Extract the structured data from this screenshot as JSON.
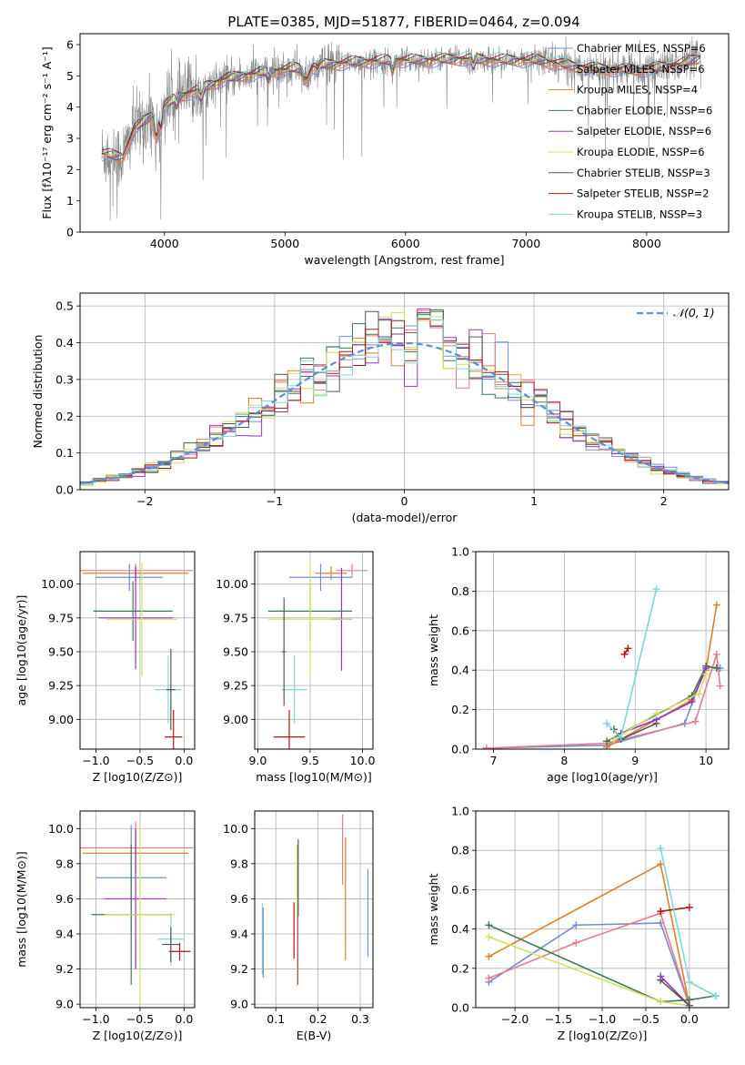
{
  "figure_title": "PLATE=0385, MJD=51877, FIBERID=0464, z=0.094",
  "colors": {
    "chabrier_miles": "#6f8fd6",
    "salpeter_miles": "#e87b8a",
    "kroupa_miles": "#e07f2b",
    "chabrier_elodie": "#3d7a4f",
    "salpeter_elodie": "#9a34c0",
    "kroupa_elodie": "#d4e060",
    "chabrier_stelib": "#555555",
    "salpeter_stelib": "#b01515",
    "kroupa_stelib": "#7ed6d8",
    "data": "#888888",
    "normal": "#5b8fd6"
  },
  "chart_data": [
    {
      "id": "spectrum",
      "type": "line",
      "title": "PLATE=0385, MJD=51877, FIBERID=0464, z=0.094",
      "xlabel": "wavelength [Angstrom, rest frame]",
      "ylabel": "Flux [fλ10⁻¹⁷ erg cm⁻² s⁻¹ A⁻¹]",
      "xlim": [
        3300,
        8680
      ],
      "ylim": [
        0,
        6.35
      ],
      "xticks": [
        "4000",
        "5000",
        "6000",
        "7000",
        "8000"
      ],
      "yticks": [
        "0",
        "1",
        "2",
        "3",
        "4",
        "5",
        "6"
      ],
      "grid": false,
      "legend": "right",
      "continuum": [
        [
          3500,
          2.5
        ],
        [
          3650,
          2.4
        ],
        [
          3750,
          3.3
        ],
        [
          3850,
          3.6
        ],
        [
          3950,
          3.9
        ],
        [
          4100,
          4.3
        ],
        [
          4300,
          4.6
        ],
        [
          4500,
          4.9
        ],
        [
          4800,
          5.1
        ],
        [
          5000,
          5.2
        ],
        [
          5300,
          5.35
        ],
        [
          5600,
          5.45
        ],
        [
          5900,
          5.5
        ],
        [
          6200,
          5.5
        ],
        [
          6500,
          5.55
        ],
        [
          6800,
          5.5
        ],
        [
          7100,
          5.5
        ],
        [
          7400,
          5.3
        ],
        [
          7700,
          5.2
        ],
        [
          8000,
          5.2
        ],
        [
          8300,
          5.4
        ],
        [
          8450,
          5.6
        ]
      ],
      "series": [
        {
          "name": "Chabrier MILES, N_SSP=6"
        },
        {
          "name": "Salpeter MILES, N_SSP=6"
        },
        {
          "name": "Kroupa MILES, N_SSP=4"
        },
        {
          "name": "Chabrier ELODIE, N_SSP=6"
        },
        {
          "name": "Salpeter ELODIE, N_SSP=6"
        },
        {
          "name": "Kroupa ELODIE, N_SSP=6"
        },
        {
          "name": "Chabrier STELIB, N_SSP=3"
        },
        {
          "name": "Salpeter STELIB, N_SSP=2"
        },
        {
          "name": "Kroupa STELIB, N_SSP=3"
        }
      ]
    },
    {
      "id": "residuals",
      "type": "line",
      "xlabel": "(data-model)/error",
      "ylabel": "Normed distribution",
      "xlim": [
        -2.5,
        2.5
      ],
      "ylim": [
        0,
        0.535
      ],
      "xticks": [
        "−2",
        "−1",
        "0",
        "1",
        "2"
      ],
      "yticks": [
        "0.0",
        "0.1",
        "0.2",
        "0.3",
        "0.4",
        "0.5"
      ],
      "grid": true,
      "legend": "top-right",
      "reference": {
        "name": "𝒩(0, 1)",
        "mean": 0,
        "sigma": 1
      }
    },
    {
      "id": "age_vs_Z",
      "type": "scatter",
      "xlabel": "Z [log10(Z/Z⊙)]",
      "ylabel": "age  [log10(age/yr)]",
      "xlim": [
        -1.18,
        0.12
      ],
      "ylim": [
        8.78,
        10.24
      ],
      "xticks": [
        "−1.0",
        "−0.5",
        "0.0"
      ],
      "yticks": [
        "9.00",
        "9.25",
        "9.50",
        "9.75",
        "10.00"
      ],
      "grid": true,
      "points": [
        {
          "x": -0.55,
          "y": 10.1,
          "xerr": 0.65,
          "yerr": 0.05,
          "color": "#e87b8a"
        },
        {
          "x": -0.55,
          "y": 10.08,
          "xerr": 0.6,
          "yerr": 0.05,
          "color": "#e07f2b"
        },
        {
          "x": -0.62,
          "y": 10.05,
          "xerr": 0.38,
          "yerr": 0.1,
          "color": "#6f8fd6"
        },
        {
          "x": -0.58,
          "y": 9.8,
          "xerr": 0.45,
          "yerr": 0.22,
          "color": "#3d7a4f"
        },
        {
          "x": -0.55,
          "y": 9.75,
          "xerr": 0.42,
          "yerr": 0.38,
          "color": "#9a34c0"
        },
        {
          "x": -0.48,
          "y": 9.74,
          "xerr": 0.4,
          "yerr": 0.42,
          "color": "#d4e060"
        },
        {
          "x": -0.18,
          "y": 9.22,
          "xerr": 0.15,
          "yerr": 0.25,
          "color": "#7ed6d8"
        },
        {
          "x": -0.12,
          "y": 8.87,
          "xerr": 0.1,
          "yerr": 0.2,
          "color": "#b01515"
        },
        {
          "x": -0.15,
          "y": 9.22,
          "xerr": 0.05,
          "yerr": 0.3,
          "color": "#555555"
        }
      ]
    },
    {
      "id": "age_vs_mass",
      "type": "scatter",
      "xlabel": "mass [log10(M/M⊙)]",
      "ylabel": "",
      "xlim": [
        8.97,
        10.1
      ],
      "ylim": [
        8.78,
        10.24
      ],
      "xticks": [
        "9.0",
        "9.5",
        "10.0"
      ],
      "yticks": [
        "9.00",
        "9.25",
        "9.50",
        "9.75",
        "10.00"
      ],
      "grid": true,
      "points": [
        {
          "x": 9.9,
          "y": 10.1,
          "xerr": 0.15,
          "yerr": 0.05,
          "color": "#e87b8a"
        },
        {
          "x": 9.7,
          "y": 10.08,
          "xerr": 0.15,
          "yerr": 0.05,
          "color": "#e07f2b"
        },
        {
          "x": 9.6,
          "y": 10.05,
          "xerr": 0.3,
          "yerr": 0.1,
          "color": "#6f8fd6"
        },
        {
          "x": 9.5,
          "y": 9.8,
          "xerr": 0.4,
          "yerr": 0.22,
          "color": "#3d7a4f"
        },
        {
          "x": 9.8,
          "y": 9.74,
          "xerr": 0.1,
          "yerr": 0.38,
          "color": "#9a34c0"
        },
        {
          "x": 9.5,
          "y": 9.74,
          "xerr": 0.4,
          "yerr": 0.42,
          "color": "#d4e060"
        },
        {
          "x": 9.35,
          "y": 9.22,
          "xerr": 0.12,
          "yerr": 0.25,
          "color": "#7ed6d8"
        },
        {
          "x": 9.3,
          "y": 8.87,
          "xerr": 0.15,
          "yerr": 0.2,
          "color": "#b01515"
        },
        {
          "x": 9.25,
          "y": 9.5,
          "xerr": 0.02,
          "yerr": 0.4,
          "color": "#555555"
        }
      ]
    },
    {
      "id": "mass_weight_vs_age",
      "type": "line",
      "xlabel": "age  [log10(age/yr)]",
      "ylabel": "mass weight",
      "xlim": [
        6.75,
        10.32
      ],
      "ylim": [
        0,
        1.0
      ],
      "xticks": [
        "7",
        "8",
        "9",
        "10"
      ],
      "yticks": [
        "0.0",
        "0.2",
        "0.4",
        "0.6",
        "0.8",
        "1.0"
      ],
      "grid": true,
      "series": [
        {
          "color": "#6f8fd6",
          "points": [
            [
              6.9,
              0.005
            ],
            [
              8.6,
              0.02
            ],
            [
              9.7,
              0.13
            ],
            [
              10.0,
              0.42
            ],
            [
              10.2,
              0.41
            ]
          ]
        },
        {
          "color": "#e87b8a",
          "points": [
            [
              6.9,
              0.005
            ],
            [
              8.6,
              0.03
            ],
            [
              9.85,
              0.14
            ],
            [
              10.15,
              0.48
            ],
            [
              10.2,
              0.32
            ]
          ]
        },
        {
          "color": "#e07f2b",
          "points": [
            [
              8.6,
              0.01
            ],
            [
              9.8,
              0.25
            ],
            [
              10.0,
              0.4
            ],
            [
              10.15,
              0.73
            ]
          ]
        },
        {
          "color": "#3d7a4f",
          "points": [
            [
              8.6,
              0.04
            ],
            [
              9.8,
              0.27
            ],
            [
              10.0,
              0.42
            ],
            [
              10.15,
              0.41
            ]
          ]
        },
        {
          "color": "#9a34c0",
          "points": [
            [
              8.8,
              0.08
            ],
            [
              9.3,
              0.15
            ],
            [
              9.8,
              0.24
            ],
            [
              10.0,
              0.41
            ]
          ]
        },
        {
          "color": "#d4e060",
          "points": [
            [
              8.7,
              0.05
            ],
            [
              9.3,
              0.18
            ],
            [
              9.9,
              0.28
            ],
            [
              10.0,
              0.38
            ]
          ]
        },
        {
          "color": "#555555",
          "points": [
            [
              8.7,
              0.1
            ],
            [
              8.8,
              0.05
            ],
            [
              9.3,
              0.13
            ]
          ]
        },
        {
          "color": "#b01515",
          "points": [
            [
              8.85,
              0.48
            ],
            [
              8.9,
              0.51
            ]
          ]
        },
        {
          "color": "#7ed6d8",
          "points": [
            [
              8.6,
              0.13
            ],
            [
              8.8,
              0.06
            ],
            [
              9.3,
              0.81
            ]
          ]
        }
      ]
    },
    {
      "id": "mass_vs_Z",
      "type": "scatter",
      "xlabel": "Z [log10(Z/Z⊙)]",
      "ylabel": "mass [log10(M/M⊙)]",
      "xlim": [
        -1.18,
        0.12
      ],
      "ylim": [
        8.98,
        10.1
      ],
      "xticks": [
        "−1.0",
        "−0.5",
        "0.0"
      ],
      "yticks": [
        "9.0",
        "9.2",
        "9.4",
        "9.6",
        "9.8",
        "10.0"
      ],
      "grid": true,
      "points": [
        {
          "x": -0.55,
          "y": 9.89,
          "xerr": 0.65,
          "yerr": 0.15,
          "color": "#e87b8a"
        },
        {
          "x": -0.55,
          "y": 9.86,
          "xerr": 0.6,
          "yerr": 0.1,
          "color": "#e07f2b"
        },
        {
          "x": -0.6,
          "y": 9.72,
          "xerr": 0.4,
          "yerr": 0.3,
          "color": "#6f8fd6"
        },
        {
          "x": -0.6,
          "y": 9.51,
          "xerr": 0.45,
          "yerr": 0.4,
          "color": "#3d7a4f"
        },
        {
          "x": -0.55,
          "y": 9.6,
          "xerr": 0.35,
          "yerr": 0.4,
          "color": "#9a34c0"
        },
        {
          "x": -0.5,
          "y": 9.51,
          "xerr": 0.4,
          "yerr": 0.5,
          "color": "#d4e060"
        },
        {
          "x": -0.15,
          "y": 9.37,
          "xerr": 0.15,
          "yerr": 0.15,
          "color": "#7ed6d8"
        },
        {
          "x": -0.05,
          "y": 9.3,
          "xerr": 0.12,
          "yerr": 0.05,
          "color": "#b01515"
        },
        {
          "x": -0.15,
          "y": 9.34,
          "xerr": 0.1,
          "yerr": 0.1,
          "color": "#555555"
        }
      ]
    },
    {
      "id": "mass_vs_ebv",
      "type": "scatter",
      "xlabel": "E(B-V)",
      "ylabel": "",
      "xlim": [
        0.05,
        0.33
      ],
      "ylim": [
        8.98,
        10.1
      ],
      "xticks": [
        "0.1",
        "0.2",
        "0.3"
      ],
      "yticks": [
        "9.0",
        "9.2",
        "9.4",
        "9.6",
        "9.8",
        "10.0"
      ],
      "grid": true,
      "points": [
        {
          "x": 0.068,
          "y": 9.37,
          "yerr": 0.2,
          "color": "#7ed6d8"
        },
        {
          "x": 0.07,
          "y": 9.35,
          "yerr": 0.2,
          "color": "#6f8fd6"
        },
        {
          "x": 0.143,
          "y": 9.42,
          "yerr": 0.16,
          "color": "#b01515"
        },
        {
          "x": 0.152,
          "y": 9.51,
          "yerr": 0.4,
          "color": "#9a34c0"
        },
        {
          "x": 0.153,
          "y": 9.72,
          "yerr": 0.22,
          "color": "#3d7a4f"
        },
        {
          "x": 0.15,
          "y": 9.5,
          "yerr": 0.4,
          "color": "#d4e060"
        },
        {
          "x": 0.258,
          "y": 9.88,
          "yerr": 0.2,
          "color": "#e87b8a"
        },
        {
          "x": 0.265,
          "y": 9.6,
          "yerr": 0.35,
          "color": "#e07f2b"
        },
        {
          "x": 0.318,
          "y": 9.52,
          "yerr": 0.25,
          "color": "#6f8fd6"
        }
      ]
    },
    {
      "id": "mass_weight_vs_Z",
      "type": "line",
      "xlabel": "Z [log10(Z/Z⊙)]",
      "ylabel": "mass weight",
      "xlim": [
        -2.45,
        0.45
      ],
      "ylim": [
        0,
        1.0
      ],
      "xticks": [
        "−2.0",
        "−1.5",
        "−1.0",
        "−0.5",
        "0.0"
      ],
      "yticks": [
        "0.0",
        "0.2",
        "0.4",
        "0.6",
        "0.8",
        "1.0"
      ],
      "grid": true,
      "series": [
        {
          "color": "#6f8fd6",
          "points": [
            [
              -2.3,
              0.13
            ],
            [
              -1.3,
              0.42
            ],
            [
              -0.33,
              0.43
            ],
            [
              0.0,
              0.01
            ]
          ]
        },
        {
          "color": "#e87b8a",
          "points": [
            [
              -2.3,
              0.15
            ],
            [
              -1.3,
              0.33
            ],
            [
              -0.33,
              0.48
            ],
            [
              0.0,
              0.01
            ]
          ]
        },
        {
          "color": "#e07f2b",
          "points": [
            [
              -2.3,
              0.26
            ],
            [
              -0.33,
              0.73
            ],
            [
              0.0,
              0.01
            ]
          ]
        },
        {
          "color": "#3d7a4f",
          "points": [
            [
              -2.3,
              0.42
            ],
            [
              -0.33,
              0.03
            ],
            [
              0.0,
              0.04
            ],
            [
              0.3,
              0.06
            ]
          ]
        },
        {
          "color": "#9a34c0",
          "points": [
            [
              -0.33,
              0.16
            ],
            [
              0.0,
              0.01
            ]
          ]
        },
        {
          "color": "#d4e060",
          "points": [
            [
              -2.3,
              0.36
            ],
            [
              -0.33,
              0.03
            ],
            [
              0.0,
              0.01
            ]
          ]
        },
        {
          "color": "#555555",
          "points": [
            [
              -0.33,
              0.14
            ],
            [
              0.0,
              0.01
            ]
          ]
        },
        {
          "color": "#b01515",
          "points": [
            [
              -0.33,
              0.49
            ],
            [
              0.0,
              0.51
            ]
          ]
        },
        {
          "color": "#7ed6d8",
          "points": [
            [
              -0.33,
              0.81
            ],
            [
              0.0,
              0.13
            ],
            [
              0.3,
              0.06
            ]
          ]
        }
      ]
    }
  ]
}
